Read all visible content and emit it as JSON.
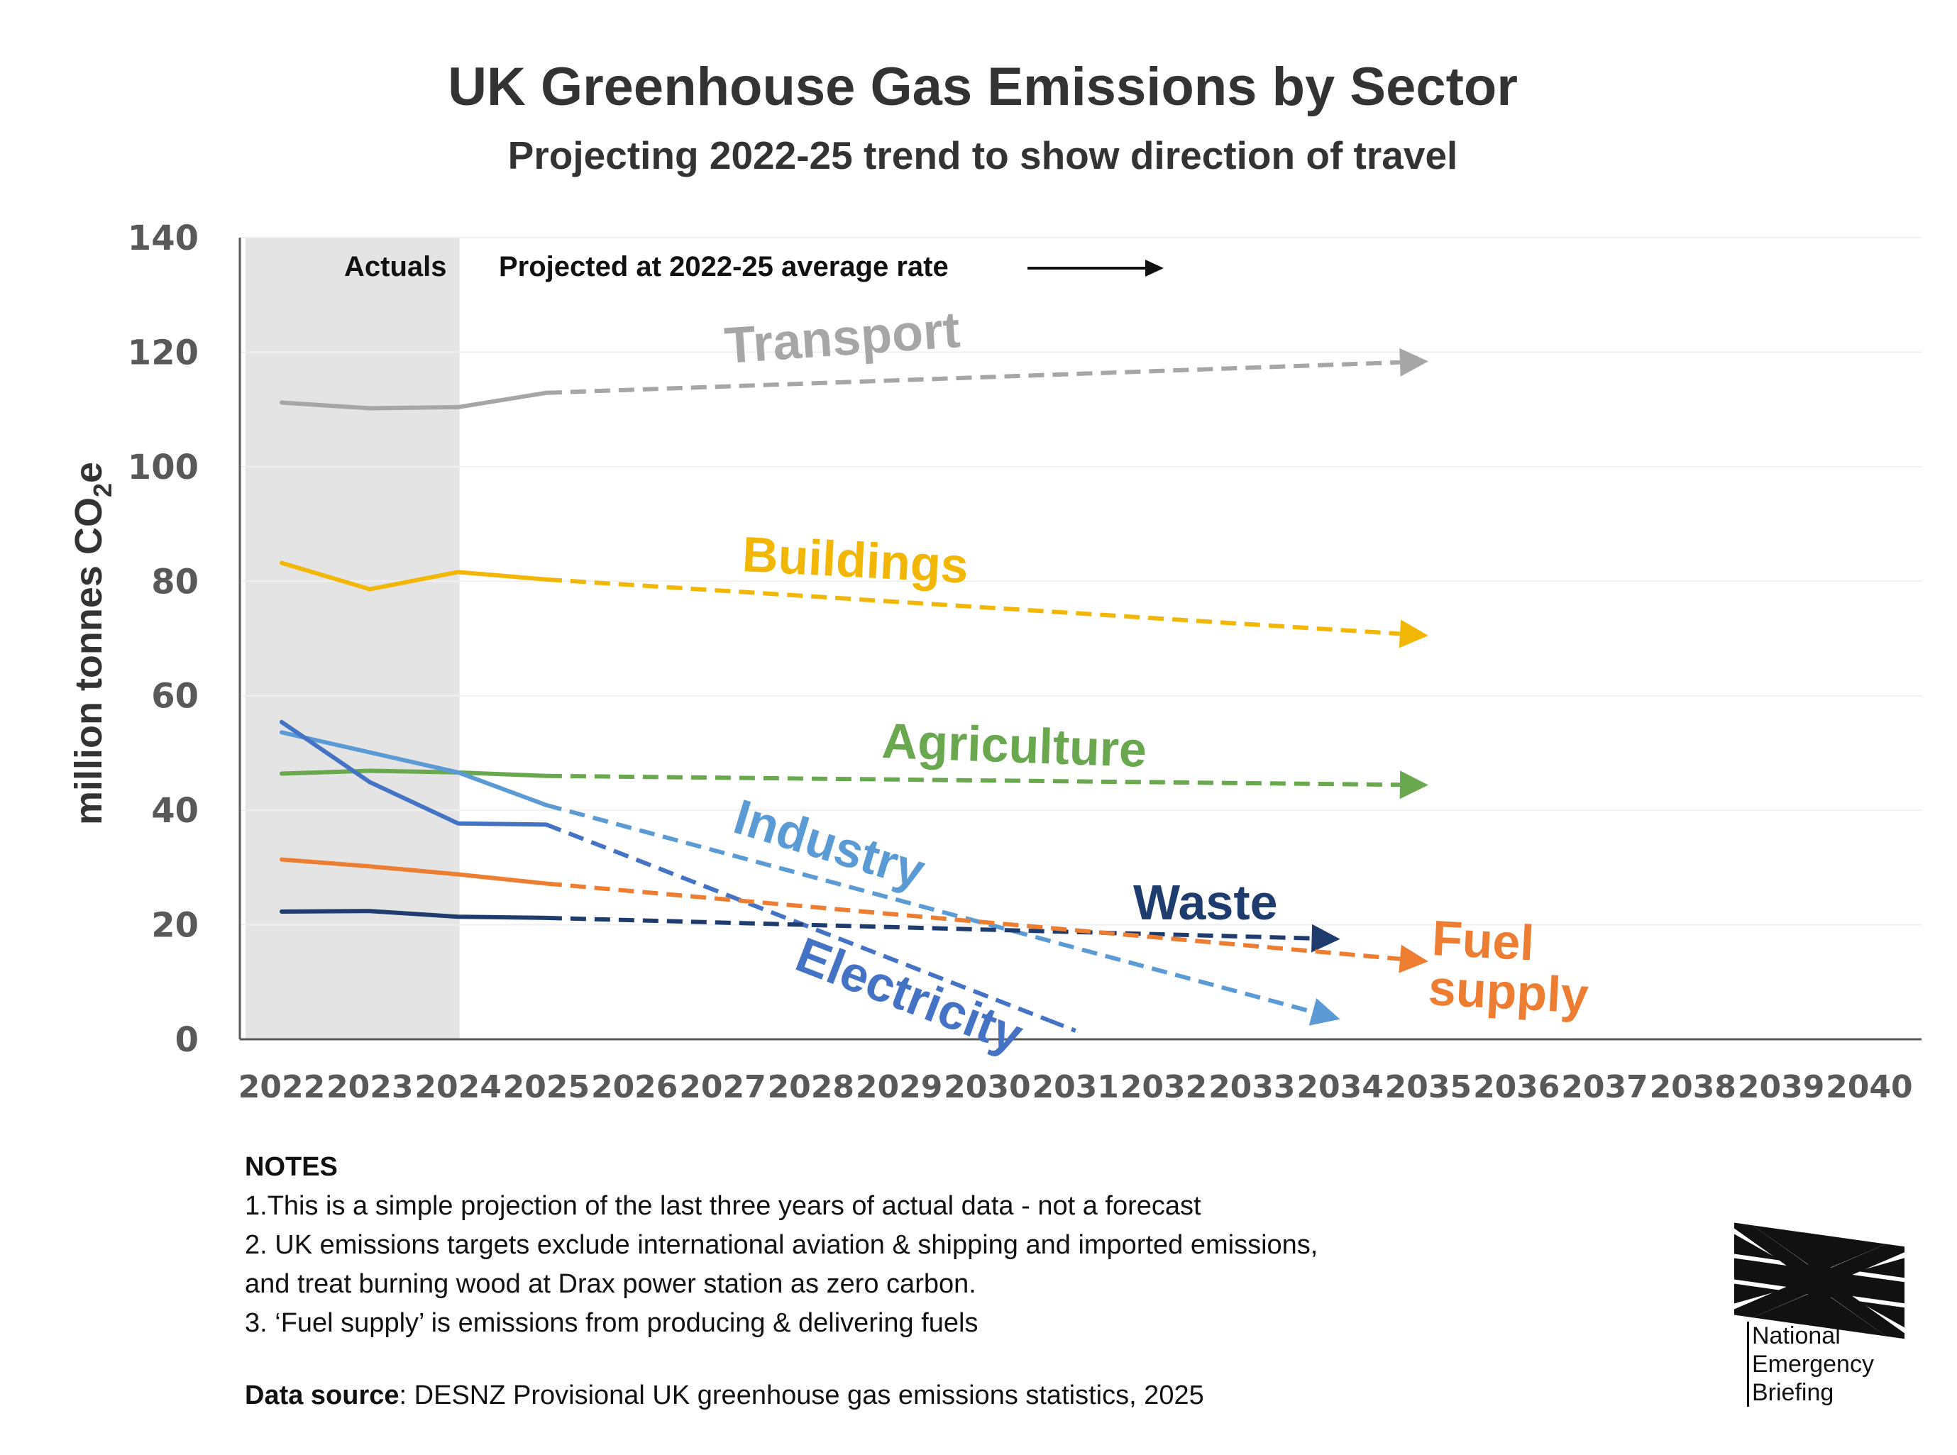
{
  "title": "UK Greenhouse Gas Emissions by Sector",
  "subtitle": "Projecting 2022-25 trend to show direction of travel",
  "colors": {
    "transport": "#a6a6a6",
    "buildings": "#f2b705",
    "agriculture": "#6aa84f",
    "industry": "#5b9bd5",
    "electricity": "#4472c4",
    "waste": "#1f3c6e",
    "fuel_supply": "#ed7d31",
    "actuals_shade": "#e4e4e4"
  },
  "annotations": {
    "actuals": "Actuals",
    "projected": "Projected at 2022-25 average rate"
  },
  "notes": {
    "heading": "NOTES",
    "lines": [
      "1.This is a simple projection of the last three years of actual data - not a forecast",
      "2. UK emissions targets exclude international aviation & shipping and imported emissions,",
      "and treat burning wood at Drax power station as zero carbon.",
      "3. ‘Fuel supply’ is emissions from producing & delivering fuels"
    ],
    "source_label": "Data source",
    "source_text": ": DESNZ Provisional UK greenhouse gas emissions statistics, 2025"
  },
  "logo": {
    "icon": "union-jack-flag-icon",
    "line1": "National",
    "line2": "Emergency",
    "line3": "Briefing"
  },
  "chart_data": {
    "type": "line",
    "title": "UK Greenhouse Gas Emissions by Sector",
    "subtitle": "Projecting 2022-25 trend to show direction of travel",
    "ylabel": "million tonnes CO2e",
    "ylabel_main": "million tonnes CO",
    "ylabel_sub": "2",
    "ylabel_tail": "e",
    "xlabel": "",
    "x": [
      2022,
      2023,
      2024,
      2025,
      2026,
      2027,
      2028,
      2029,
      2030,
      2031,
      2032,
      2033,
      2034,
      2035,
      2036,
      2037,
      2038,
      2039,
      2040
    ],
    "ylim": [
      0,
      140
    ],
    "yticks": [
      0,
      20,
      40,
      60,
      80,
      100,
      120,
      140
    ],
    "actuals_range": [
      2022,
      2024
    ],
    "grid": true,
    "series": [
      {
        "name": "Transport",
        "label": "Transport",
        "color_key": "transport",
        "actual_x": [
          2022,
          2023,
          2024,
          2025
        ],
        "actual_y": [
          111.2,
          110.2,
          110.4,
          112.9
        ],
        "projected_x": [
          2025,
          2035
        ],
        "projected_y": [
          112.9,
          118.4
        ]
      },
      {
        "name": "Buildings",
        "label": "Buildings",
        "color_key": "buildings",
        "actual_x": [
          2022,
          2023,
          2024,
          2025
        ],
        "actual_y": [
          83.2,
          78.6,
          81.6,
          80.3
        ],
        "projected_x": [
          2025,
          2035
        ],
        "projected_y": [
          80.3,
          70.5
        ]
      },
      {
        "name": "Agriculture",
        "label": "Agriculture",
        "color_key": "agriculture",
        "actual_x": [
          2022,
          2023,
          2024,
          2025
        ],
        "actual_y": [
          46.4,
          46.9,
          46.6,
          46.0
        ],
        "projected_x": [
          2025,
          2035
        ],
        "projected_y": [
          46.0,
          44.4
        ]
      },
      {
        "name": "Industry",
        "label": "Industry",
        "color_key": "industry",
        "actual_x": [
          2022,
          2023,
          2024,
          2025
        ],
        "actual_y": [
          53.6,
          50.1,
          46.6,
          40.9
        ],
        "projected_x": [
          2025,
          2034
        ],
        "projected_y": [
          40.9,
          3.5
        ]
      },
      {
        "name": "Electricity",
        "label": "Electricity",
        "color_key": "electricity",
        "actual_x": [
          2022,
          2023,
          2024,
          2025
        ],
        "actual_y": [
          55.4,
          44.9,
          37.7,
          37.5
        ],
        "projected_x": [
          2025,
          2031
        ],
        "projected_y": [
          37.5,
          1.5
        ]
      },
      {
        "name": "Waste",
        "label": "Waste",
        "color_key": "waste",
        "actual_x": [
          2022,
          2023,
          2024,
          2025
        ],
        "actual_y": [
          22.3,
          22.4,
          21.4,
          21.2
        ],
        "projected_x": [
          2025,
          2034
        ],
        "projected_y": [
          21.2,
          17.5
        ]
      },
      {
        "name": "Fuel supply",
        "label_line1": "Fuel",
        "label_line2": "supply",
        "color_key": "fuel_supply",
        "actual_x": [
          2022,
          2023,
          2024,
          2025
        ],
        "actual_y": [
          31.4,
          30.2,
          28.8,
          27.2
        ],
        "projected_x": [
          2025,
          2035
        ],
        "projected_y": [
          27.2,
          13.6
        ]
      }
    ]
  }
}
